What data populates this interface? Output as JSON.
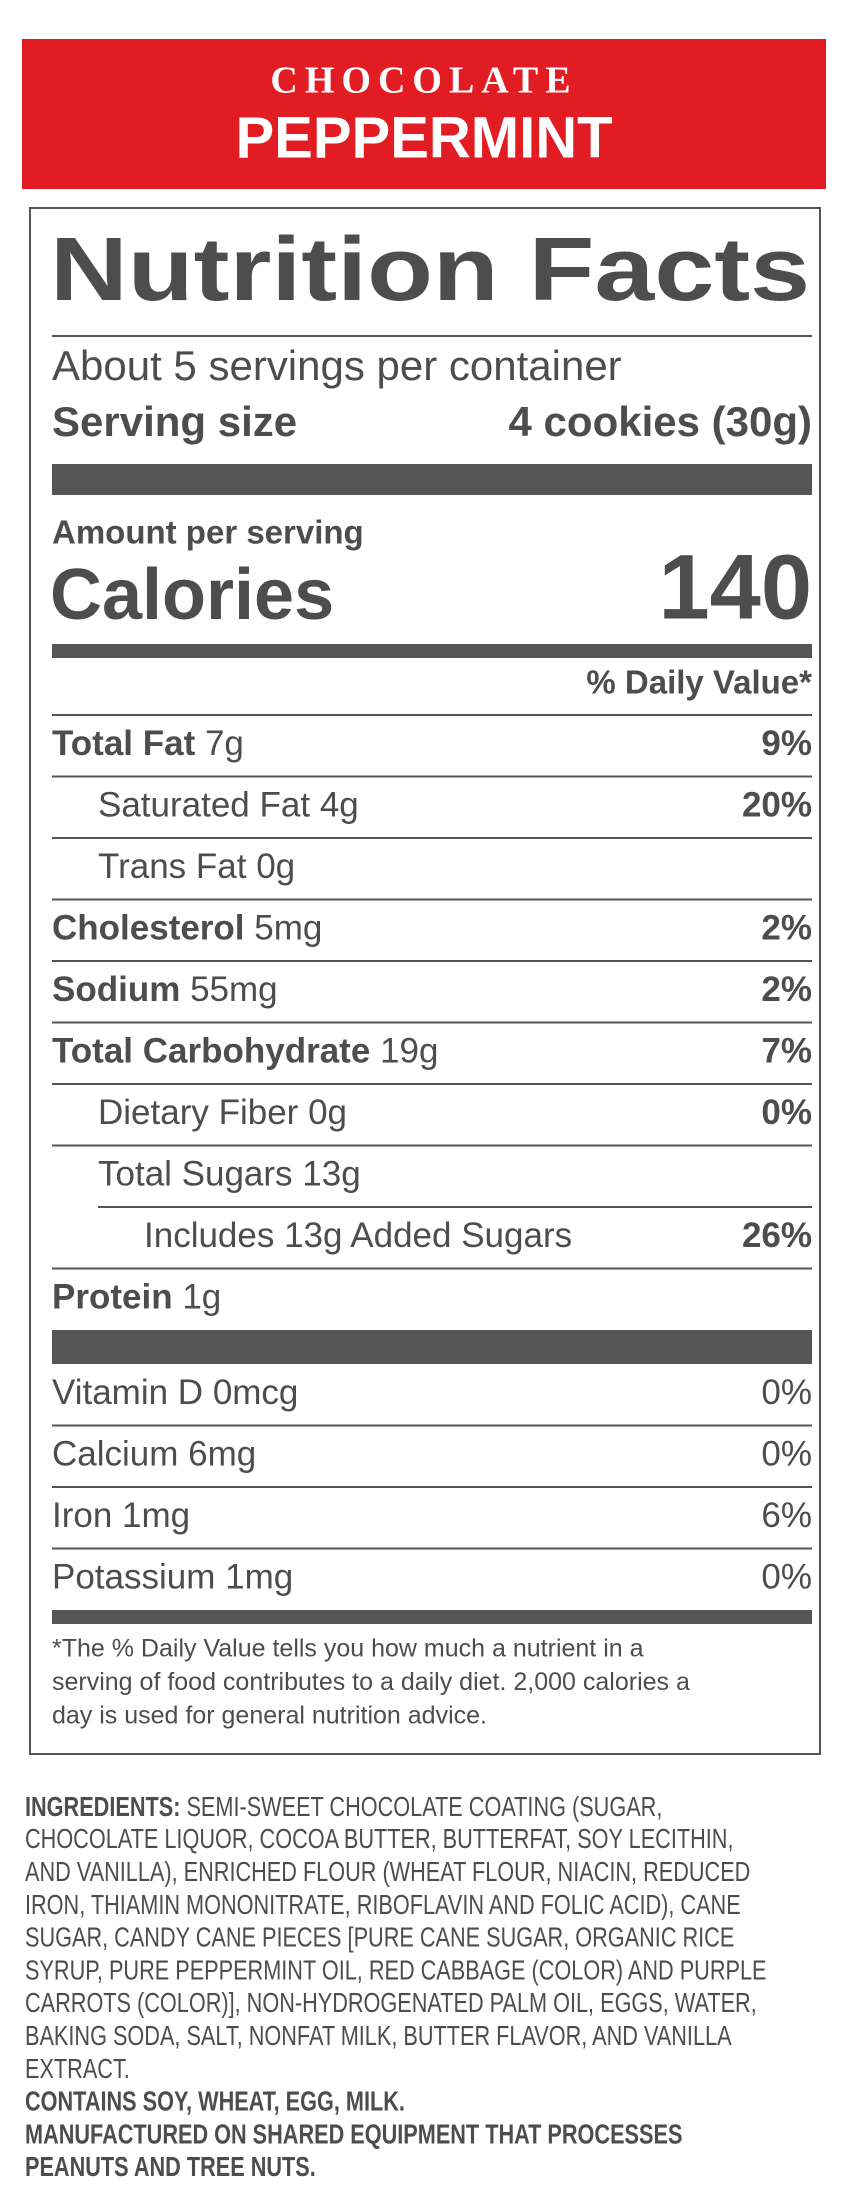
{
  "banner": {
    "line1": "CHOCOLATE",
    "line2": "PEPPERMINT"
  },
  "label": {
    "title": "Nutrition Facts",
    "servings": "About 5 servings per container",
    "serving_size_label": "Serving size",
    "serving_size_value": "4 cookies (30g)",
    "amount_per_serving": "Amount per serving",
    "calories_label": "Calories",
    "calories_value": "140",
    "daily_value_header": "% Daily Value*",
    "nutrients": [
      {
        "name": "Total Fat",
        "amount": "7g",
        "dv": "9%",
        "indent": 0
      },
      {
        "name": "Saturated Fat",
        "amount": "4g",
        "dv": "20%",
        "indent": 1
      },
      {
        "name": "Trans Fat",
        "amount": "0g",
        "indent": 1
      },
      {
        "name": "Cholesterol",
        "amount": "5mg",
        "dv": "2%",
        "indent": 0
      },
      {
        "name": "Sodium",
        "amount": "55mg",
        "dv": "2%",
        "indent": 0
      },
      {
        "name": "Total Carbohydrate",
        "amount": "19g",
        "dv": "7%",
        "indent": 0
      },
      {
        "name": "Dietary Fiber",
        "amount": "0g",
        "dv": "0%",
        "indent": 1
      },
      {
        "name": "Total Sugars",
        "amount": "13g",
        "indent": 1
      },
      {
        "name": "Includes 13g Added Sugars",
        "dv": "26%",
        "indent": 2
      },
      {
        "name": "Protein",
        "amount": "1g",
        "indent": 0
      }
    ],
    "vitamins": [
      {
        "name": "Vitamin D",
        "amount": "0mcg",
        "dv": "0%"
      },
      {
        "name": "Calcium",
        "amount": "6mg",
        "dv": "0%"
      },
      {
        "name": "Iron",
        "amount": "1mg",
        "dv": "6%"
      },
      {
        "name": "Potassium",
        "amount": "1mg",
        "dv": "0%"
      }
    ],
    "footnote": [
      "*The % Daily Value tells you how much a nutrient in a",
      "serving of food contributes to a daily diet. 2,000 calories a",
      "day is used for general nutrition advice."
    ]
  },
  "ingredients": {
    "label": "INGREDIENTS:",
    "lines": [
      "SEMI-SWEET CHOCOLATE COATING (SUGAR,",
      "CHOCOLATE LIQUOR, COCOA BUTTER, BUTTERFAT, SOY LECITHIN,",
      "AND VANILLA), ENRICHED FLOUR (WHEAT FLOUR, NIACIN, REDUCED",
      "IRON, THIAMIN MONONITRATE, RIBOFLAVIN AND FOLIC ACID), CANE",
      "SUGAR, CANDY CANE PIECES [PURE CANE SUGAR, ORGANIC RICE",
      "SYRUP, PURE PEPPERMINT OIL, RED CABBAGE (COLOR) AND PURPLE",
      "CARROTS (COLOR)], NON-HYDROGENATED PALM OIL, EGGS, WATER,",
      "BAKING SODA, SALT, NONFAT MILK, BUTTER FLAVOR, AND VANILLA",
      "EXTRACT."
    ],
    "allergens": [
      "CONTAINS SOY, WHEAT, EGG, MILK.",
      "MANUFACTURED ON SHARED EQUIPMENT THAT PROCESSES",
      "PEANUTS AND TREE NUTS."
    ]
  }
}
